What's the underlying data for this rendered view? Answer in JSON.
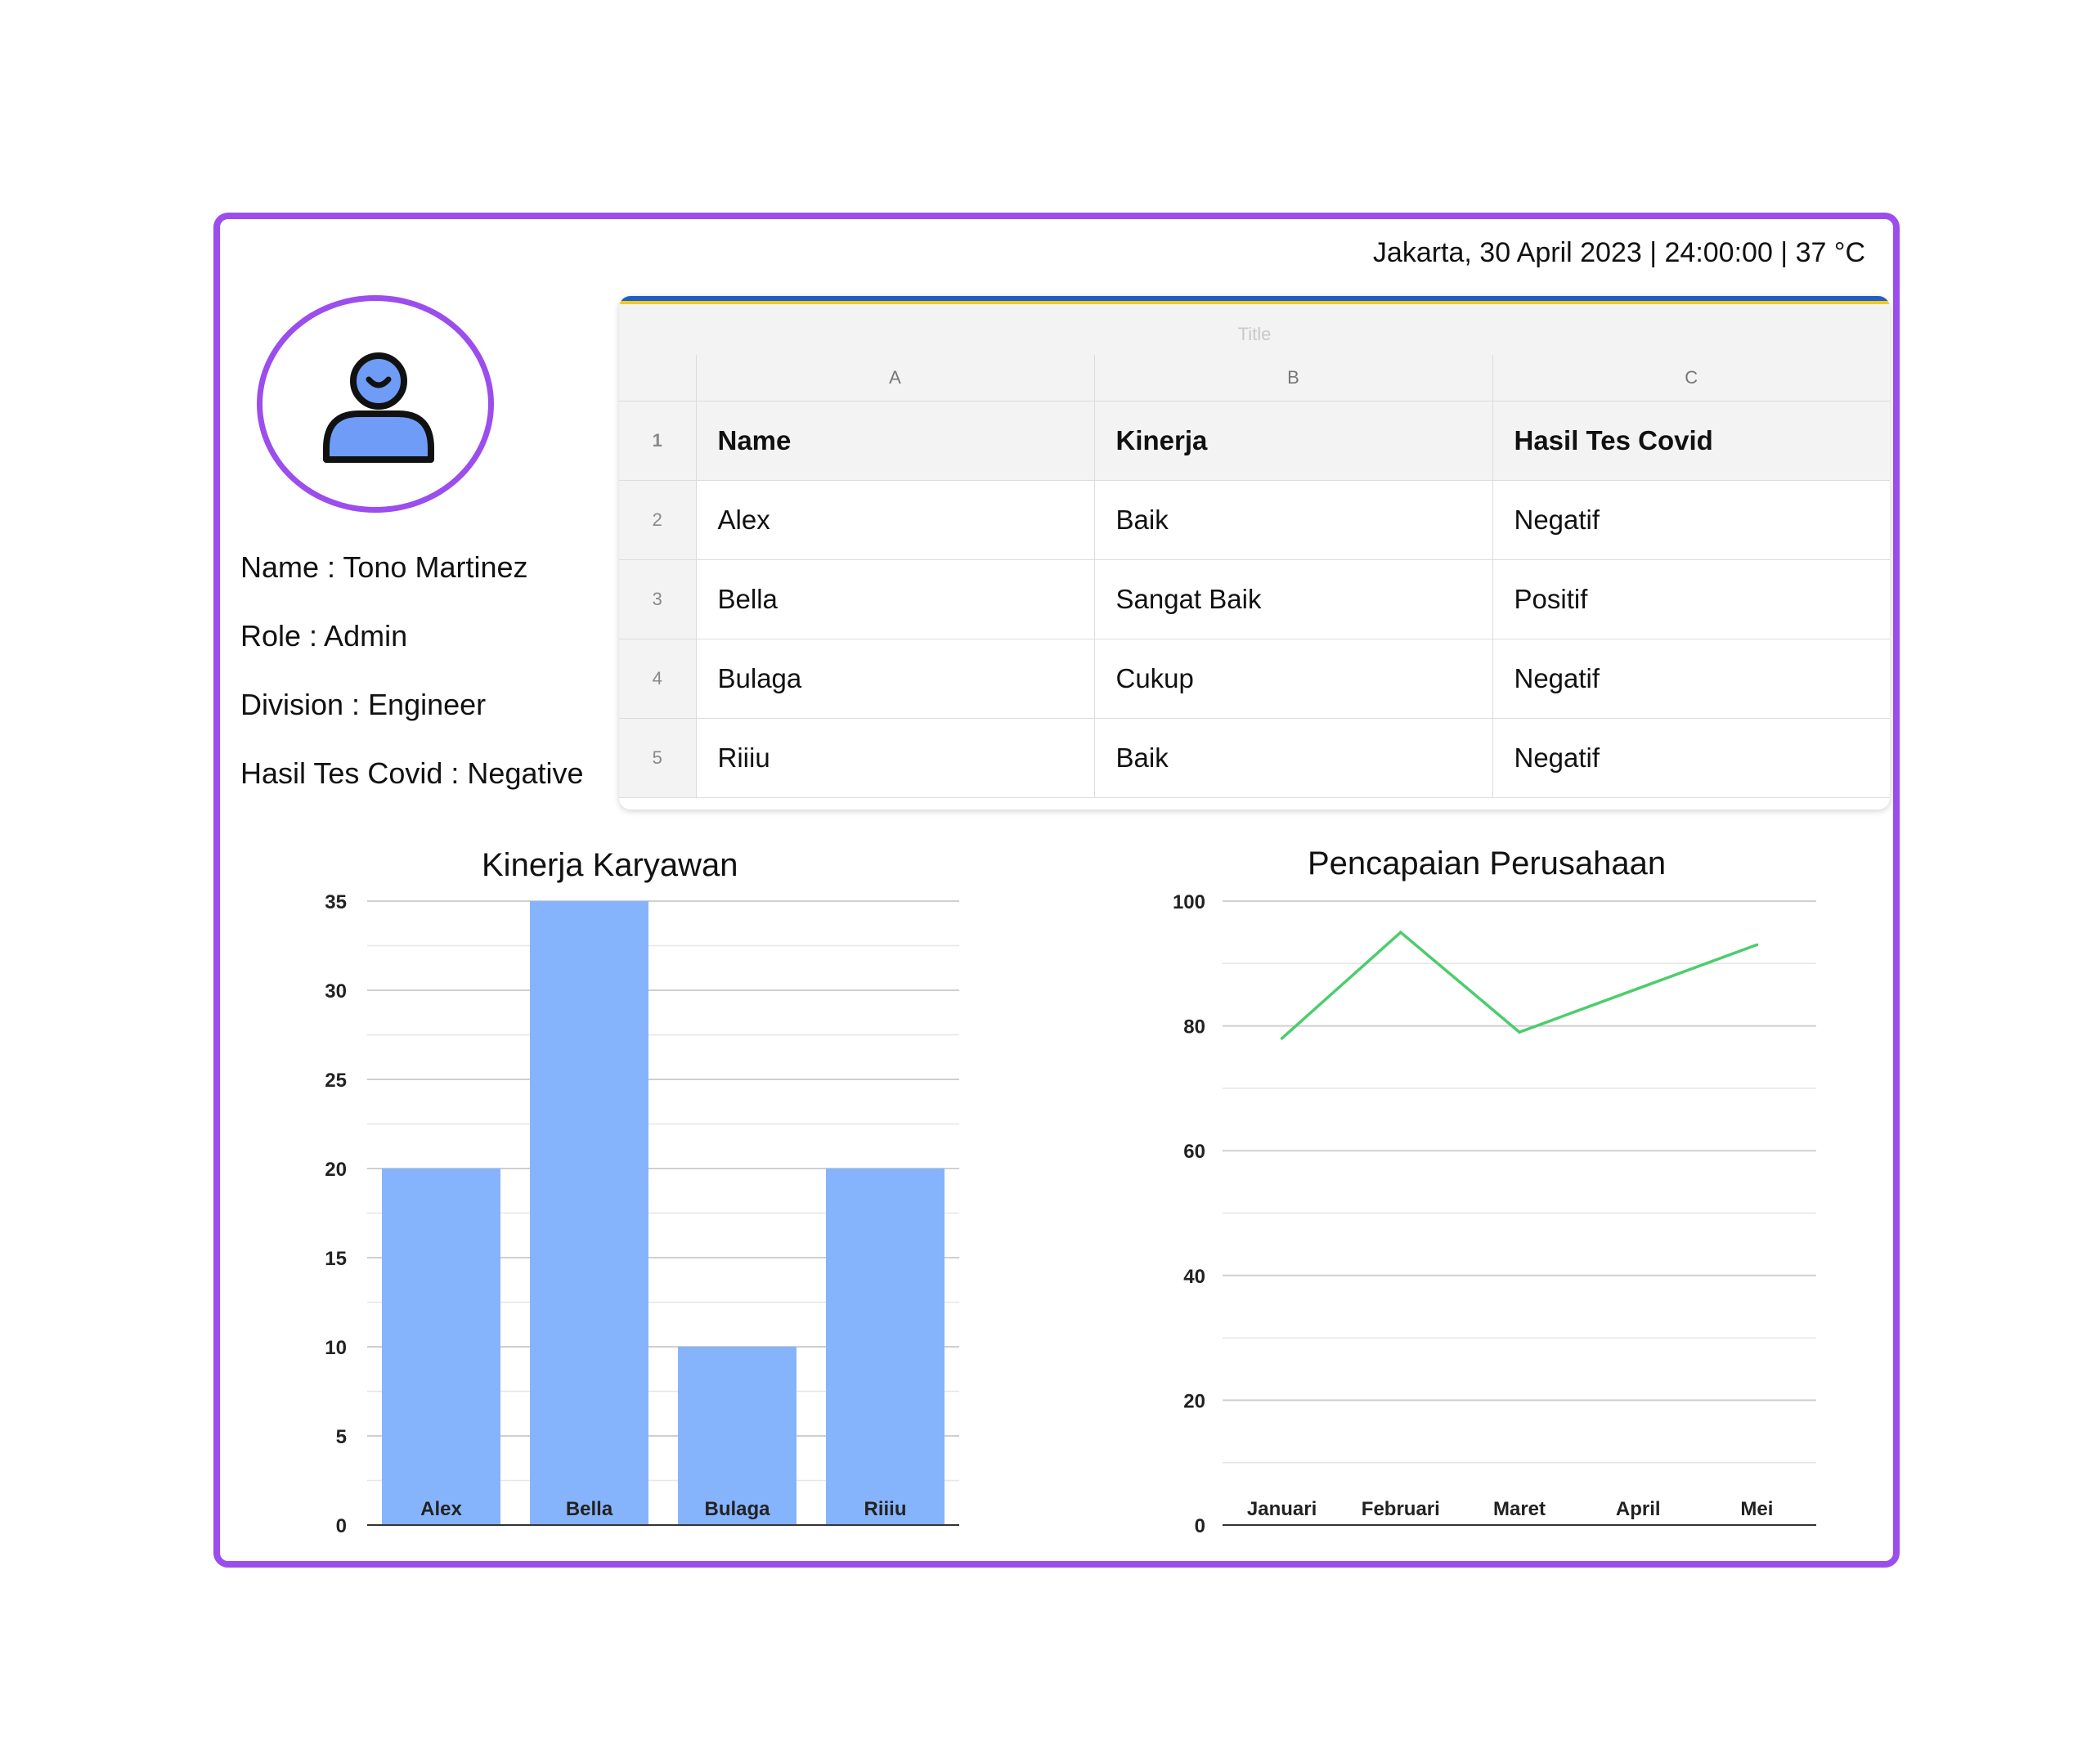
{
  "status_bar": {
    "text": "Jakarta, 30 April 2023 | 24:00:00 | 37 °C"
  },
  "profile": {
    "avatar_icon": "user-icon",
    "name": "Name : Tono Martinez",
    "role": "Role : Admin",
    "division": "Division : Engineer",
    "covid": "Hasil Tes Covid : Negative"
  },
  "sheet": {
    "title": "Title",
    "column_letters": [
      "A",
      "B",
      "C"
    ],
    "rows": [
      {
        "num": "1",
        "cells": [
          "Name",
          "Kinerja",
          "Hasil Tes Covid"
        ]
      },
      {
        "num": "2",
        "cells": [
          "Alex",
          "Baik",
          "Negatif"
        ]
      },
      {
        "num": "3",
        "cells": [
          "Bella",
          "Sangat Baik",
          "Positif"
        ]
      },
      {
        "num": "4",
        "cells": [
          "Bulaga",
          "Cukup",
          "Negatif"
        ]
      },
      {
        "num": "5",
        "cells": [
          "Riiiu",
          "Baik",
          "Negatif"
        ]
      }
    ]
  },
  "chart_data": [
    {
      "type": "bar",
      "title": "Kinerja Karyawan",
      "categories": [
        "Alex",
        "Bella",
        "Bulaga",
        "Riiiu"
      ],
      "values": [
        20,
        35,
        10,
        20
      ],
      "ylim": [
        0,
        35
      ],
      "yticks": [
        0,
        5,
        10,
        15,
        20,
        25,
        30,
        35
      ],
      "color": "#86b4fc",
      "grid": true
    },
    {
      "type": "line",
      "title": "Pencapaian Perusahaan",
      "categories": [
        "Januari",
        "Februari",
        "Maret",
        "April",
        "Mei"
      ],
      "values": [
        78,
        95,
        79,
        86,
        93
      ],
      "ylim": [
        0,
        100
      ],
      "yticks": [
        0,
        20,
        40,
        60,
        80,
        100
      ],
      "color": "#4ccd6c",
      "grid": true
    }
  ]
}
